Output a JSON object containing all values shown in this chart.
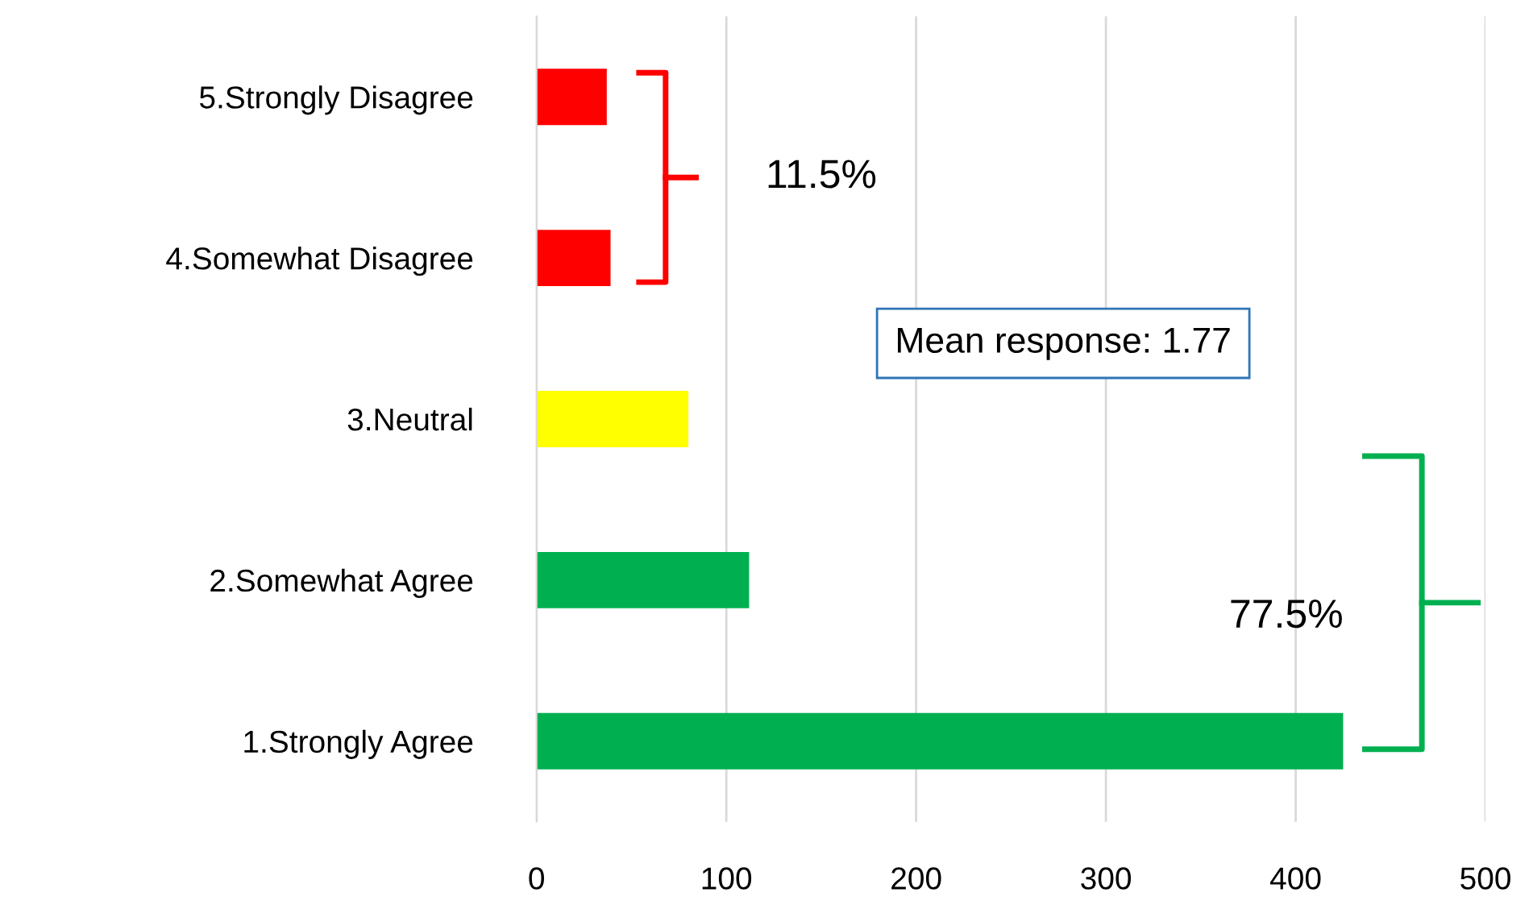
{
  "chart_data": {
    "type": "bar",
    "orientation": "horizontal",
    "categories": [
      "5.Strongly Disagree",
      "4.Somewhat Disagree",
      "3.Neutral",
      "2.Somewhat Agree",
      "1.Strongly Agree"
    ],
    "values": [
      37,
      39,
      80,
      112,
      425
    ],
    "colors": [
      "#ff0000",
      "#ff0000",
      "#ffff00",
      "#00b050",
      "#00b050"
    ],
    "xlim": [
      0,
      500
    ],
    "xticks": [
      0,
      100,
      200,
      300,
      400,
      500
    ],
    "grid": "x",
    "legend": false,
    "annotations": [
      "11.5%",
      "Mean response: 1.77",
      "77.5%"
    ]
  }
}
